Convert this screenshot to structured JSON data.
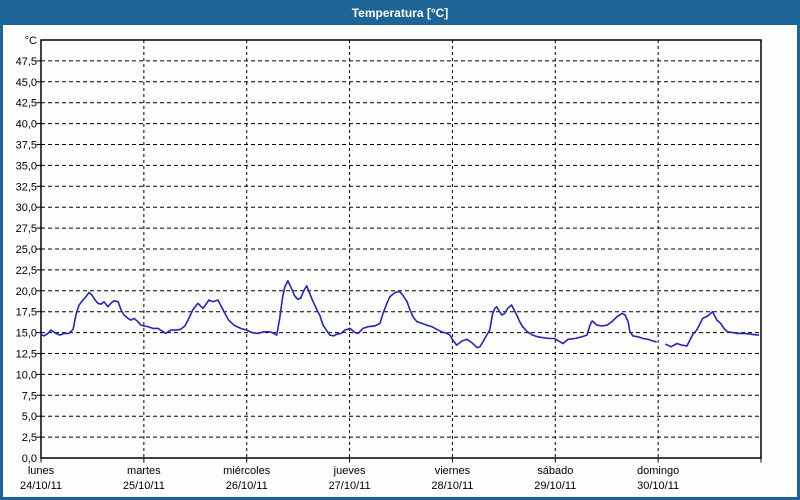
{
  "window": {
    "title": "Temperatura [°C]"
  },
  "colors": {
    "frame_blue": "#1c6596",
    "title_text": "#ffffff",
    "plot_background": "#fdfefc",
    "axis_black": "#000000",
    "line_blue": "#2626b8"
  },
  "chart_data": {
    "type": "line",
    "title": "Temperatura [°C]",
    "unit_label": "°C",
    "xlabel": "",
    "ylabel": "°C",
    "ylim": [
      0,
      50
    ],
    "ytick_step": 2.5,
    "grid": "dashed",
    "legend": "none",
    "yticks": [
      [
        0,
        "0,0"
      ],
      [
        2.5,
        "2,5"
      ],
      [
        5,
        "5,0"
      ],
      [
        7.5,
        "7,5"
      ],
      [
        10,
        "10,0"
      ],
      [
        12.5,
        "12,5"
      ],
      [
        15,
        "15,0"
      ],
      [
        17.5,
        "17,5"
      ],
      [
        20,
        "20,0"
      ],
      [
        22.5,
        "22,5"
      ],
      [
        25,
        "25,0"
      ],
      [
        27.5,
        "27,5"
      ],
      [
        30,
        "30,0"
      ],
      [
        32.5,
        "32,5"
      ],
      [
        35,
        "35,0"
      ],
      [
        37.5,
        "37,5"
      ],
      [
        40,
        "40,0"
      ],
      [
        42.5,
        "42,5"
      ],
      [
        45,
        "45,0"
      ],
      [
        47.5,
        "47,5"
      ]
    ],
    "x_hours_range": [
      0,
      168
    ],
    "x_days": [
      {
        "name": "lunes",
        "date": "24/10/11"
      },
      {
        "name": "martes",
        "date": "25/10/11"
      },
      {
        "name": "miércoles",
        "date": "26/10/11"
      },
      {
        "name": "jueves",
        "date": "27/10/11"
      },
      {
        "name": "viernes",
        "date": "28/10/11"
      },
      {
        "name": "sábado",
        "date": "29/10/11"
      },
      {
        "name": "domingo",
        "date": "30/10/11"
      }
    ],
    "series": [
      {
        "name": "Temperatura",
        "unit": "°C",
        "color": "#2626b8",
        "segments": [
          [
            [
              0,
              14.8
            ],
            [
              0.7,
              14.6
            ],
            [
              1.6,
              14.9
            ],
            [
              2.3,
              15.3
            ],
            [
              3.5,
              14.9
            ],
            [
              4.4,
              14.7
            ],
            [
              5.4,
              14.9
            ],
            [
              6.5,
              14.9
            ],
            [
              7.5,
              15.4
            ],
            [
              8.2,
              17.2
            ],
            [
              8.9,
              18.3
            ],
            [
              9.8,
              18.9
            ],
            [
              10.5,
              19.3
            ],
            [
              11.2,
              19.8
            ],
            [
              11.9,
              19.5
            ],
            [
              12.6,
              18.9
            ],
            [
              13.3,
              18.5
            ],
            [
              14,
              18.4
            ],
            [
              14.7,
              18.7
            ],
            [
              15.6,
              18.1
            ],
            [
              16.3,
              18.5
            ],
            [
              17,
              18.8
            ],
            [
              18,
              18.7
            ],
            [
              18.7,
              17.7
            ],
            [
              19.4,
              17.1
            ],
            [
              20.3,
              16.7
            ],
            [
              21,
              16.5
            ],
            [
              21.7,
              16.7
            ],
            [
              22.6,
              16.3
            ],
            [
              23.3,
              15.9
            ],
            [
              24,
              15.8
            ],
            [
              25,
              15.7
            ],
            [
              26.1,
              15.5
            ],
            [
              27.3,
              15.5
            ],
            [
              28.2,
              15.2
            ],
            [
              29.1,
              14.9
            ],
            [
              30.3,
              15.3
            ],
            [
              31.5,
              15.3
            ],
            [
              32.6,
              15.4
            ],
            [
              33.6,
              15.8
            ],
            [
              34.3,
              16.5
            ],
            [
              35.4,
              17.7
            ],
            [
              36.6,
              18.5
            ],
            [
              37.8,
              17.9
            ],
            [
              39.2,
              18.9
            ],
            [
              40.1,
              18.7
            ],
            [
              41.3,
              18.9
            ],
            [
              42.7,
              17.5
            ],
            [
              43.8,
              16.5
            ],
            [
              45,
              15.9
            ],
            [
              46.6,
              15.5
            ],
            [
              48,
              15.3
            ],
            [
              49.2,
              15.0
            ],
            [
              50.6,
              14.9
            ],
            [
              52,
              15.1
            ],
            [
              53.4,
              15.1
            ],
            [
              54.3,
              14.9
            ],
            [
              55,
              14.7
            ],
            [
              55.7,
              16.7
            ],
            [
              56.4,
              19.3
            ],
            [
              56.9,
              20.5
            ],
            [
              57.6,
              21.2
            ],
            [
              58.5,
              20.2
            ],
            [
              59.2,
              19.4
            ],
            [
              59.9,
              19.0
            ],
            [
              60.6,
              19.1
            ],
            [
              61.3,
              20.0
            ],
            [
              62,
              20.6
            ],
            [
              62.7,
              19.7
            ],
            [
              63.4,
              18.8
            ],
            [
              64.4,
              17.7
            ],
            [
              65.1,
              17.0
            ],
            [
              65.8,
              15.9
            ],
            [
              66.7,
              15.2
            ],
            [
              67.4,
              14.7
            ],
            [
              68.3,
              14.6
            ],
            [
              69,
              14.8
            ],
            [
              70,
              14.9
            ],
            [
              70.9,
              15.3
            ],
            [
              72.1,
              15.5
            ],
            [
              73.3,
              15.0
            ],
            [
              74,
              14.9
            ],
            [
              75.1,
              15.5
            ],
            [
              76.3,
              15.7
            ],
            [
              77.9,
              15.8
            ],
            [
              79.1,
              16.1
            ],
            [
              79.8,
              17.3
            ],
            [
              80.7,
              18.5
            ],
            [
              81.4,
              19.3
            ],
            [
              82.6,
              19.8
            ],
            [
              83.7,
              19.9
            ],
            [
              84.4,
              19.5
            ],
            [
              85.4,
              18.7
            ],
            [
              86.1,
              17.7
            ],
            [
              86.8,
              16.9
            ],
            [
              87.7,
              16.3
            ],
            [
              88.9,
              16.1
            ],
            [
              90,
              15.9
            ],
            [
              91.2,
              15.7
            ],
            [
              92.3,
              15.4
            ],
            [
              93.5,
              15.1
            ],
            [
              94.7,
              14.9
            ],
            [
              95.4,
              14.7
            ],
            [
              96.1,
              14.1
            ],
            [
              97,
              13.5
            ],
            [
              98.2,
              14.0
            ],
            [
              99.4,
              14.2
            ],
            [
              100.5,
              13.8
            ],
            [
              101.7,
              13.2
            ],
            [
              102.4,
              13.3
            ],
            [
              103.1,
              13.9
            ],
            [
              104,
              14.7
            ],
            [
              104.7,
              15.3
            ],
            [
              105.4,
              17.3
            ],
            [
              105.9,
              17.9
            ],
            [
              106.3,
              18.1
            ],
            [
              107.5,
              17.1
            ],
            [
              108.2,
              17.3
            ],
            [
              108.9,
              17.9
            ],
            [
              109.8,
              18.3
            ],
            [
              111,
              17.1
            ],
            [
              111.7,
              16.3
            ],
            [
              112.4,
              15.7
            ],
            [
              113.5,
              15.1
            ],
            [
              114.7,
              14.7
            ],
            [
              115.9,
              14.5
            ],
            [
              117,
              14.4
            ],
            [
              118.6,
              14.3
            ],
            [
              119.8,
              14.3
            ],
            [
              121.1,
              13.9
            ],
            [
              121.8,
              13.7
            ],
            [
              123,
              14.2
            ],
            [
              124.6,
              14.3
            ],
            [
              126.2,
              14.5
            ],
            [
              127.4,
              14.7
            ],
            [
              128.1,
              15.9
            ],
            [
              128.6,
              16.4
            ],
            [
              129.7,
              15.9
            ],
            [
              130.9,
              15.8
            ],
            [
              132.1,
              15.9
            ],
            [
              133.2,
              16.3
            ],
            [
              134.4,
              16.9
            ],
            [
              135.6,
              17.3
            ],
            [
              136.3,
              17.1
            ],
            [
              137,
              16.3
            ],
            [
              137.4,
              15.1
            ],
            [
              138.1,
              14.6
            ],
            [
              139.3,
              14.5
            ],
            [
              140.5,
              14.3
            ],
            [
              141.6,
              14.2
            ],
            [
              142.8,
              14.0
            ],
            [
              143.5,
              13.9
            ]
          ],
          [
            [
              145.8,
              13.6
            ],
            [
              147,
              13.3
            ],
            [
              148.4,
              13.7
            ],
            [
              149.5,
              13.5
            ],
            [
              150.7,
              13.4
            ],
            [
              151.4,
              14.1
            ],
            [
              152.1,
              14.8
            ],
            [
              153,
              15.3
            ],
            [
              154.4,
              16.7
            ],
            [
              155.6,
              17.0
            ],
            [
              156.7,
              17.5
            ],
            [
              157.7,
              16.5
            ],
            [
              158.6,
              16.1
            ],
            [
              159.5,
              15.4
            ],
            [
              160.2,
              15.1
            ],
            [
              161.4,
              15.0
            ],
            [
              162.5,
              14.9
            ],
            [
              164.2,
              14.9
            ],
            [
              165.8,
              14.8
            ],
            [
              167.4,
              14.7
            ]
          ]
        ]
      }
    ]
  }
}
